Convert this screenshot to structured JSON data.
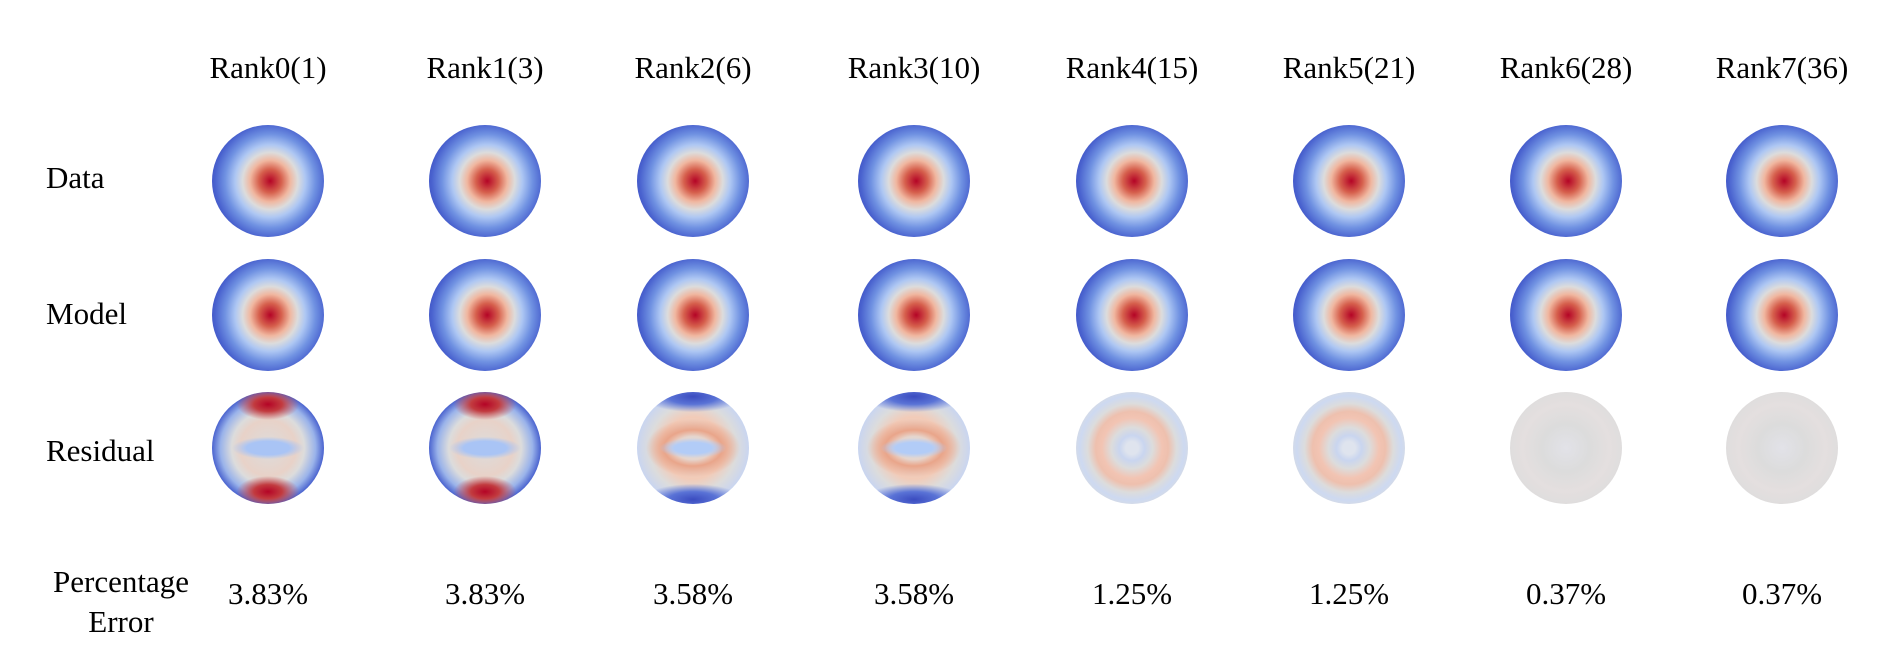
{
  "columns": [
    {
      "label": "Rank0(1)",
      "error": "3.83%",
      "residual": "a"
    },
    {
      "label": "Rank1(3)",
      "error": "3.83%",
      "residual": "a"
    },
    {
      "label": "Rank2(6)",
      "error": "3.58%",
      "residual": "b"
    },
    {
      "label": "Rank3(10)",
      "error": "3.58%",
      "residual": "b"
    },
    {
      "label": "Rank4(15)",
      "error": "1.25%",
      "residual": "c"
    },
    {
      "label": "Rank5(21)",
      "error": "1.25%",
      "residual": "c"
    },
    {
      "label": "Rank6(28)",
      "error": "0.37%",
      "residual": "d"
    },
    {
      "label": "Rank7(36)",
      "error": "0.37%",
      "residual": "d"
    }
  ],
  "rows": {
    "data": "Data",
    "model": "Model",
    "residual": "Residual",
    "error_line1": "Percentage",
    "error_line2": "Error"
  },
  "colormap": {
    "low": "#3b4cc0",
    "mid": "#dddddd",
    "high": "#b40426"
  }
}
